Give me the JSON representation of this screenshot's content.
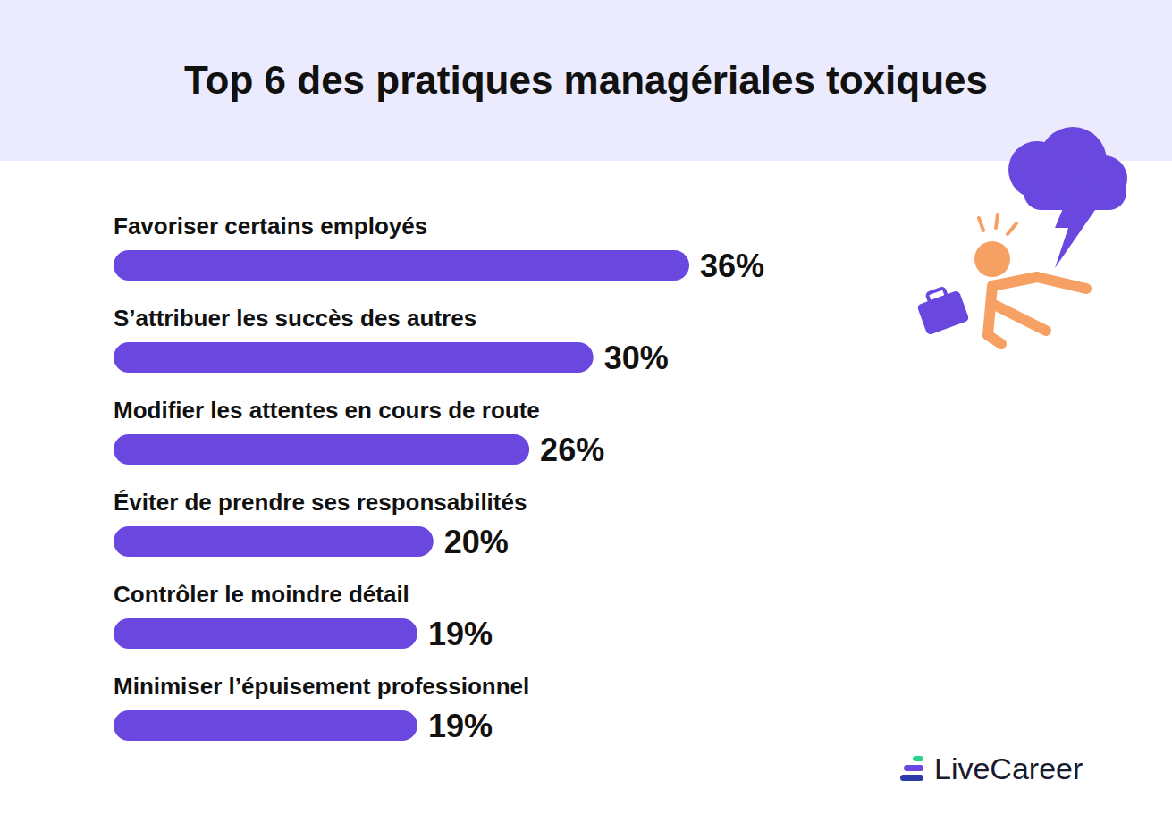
{
  "chart_data": {
    "type": "bar",
    "title": "Top 6 des pratiques managériales toxiques",
    "categories": [
      "Favoriser certains employés",
      "S’attribuer les succès des autres",
      "Modifier les attentes en cours de route",
      "Éviter de prendre ses responsabilités",
      "Contrôler le moindre détail",
      "Minimiser l’épuisement professionnel"
    ],
    "values": [
      36,
      30,
      26,
      20,
      19,
      19
    ],
    "value_labels": [
      "36%",
      "30%",
      "26%",
      "20%",
      "19%",
      "19%"
    ],
    "color": "#6a48e0",
    "orientation": "horizontal",
    "data_labels": true,
    "tick_labels": false,
    "xlim": [
      0,
      36
    ]
  },
  "brand": "LiveCareer"
}
